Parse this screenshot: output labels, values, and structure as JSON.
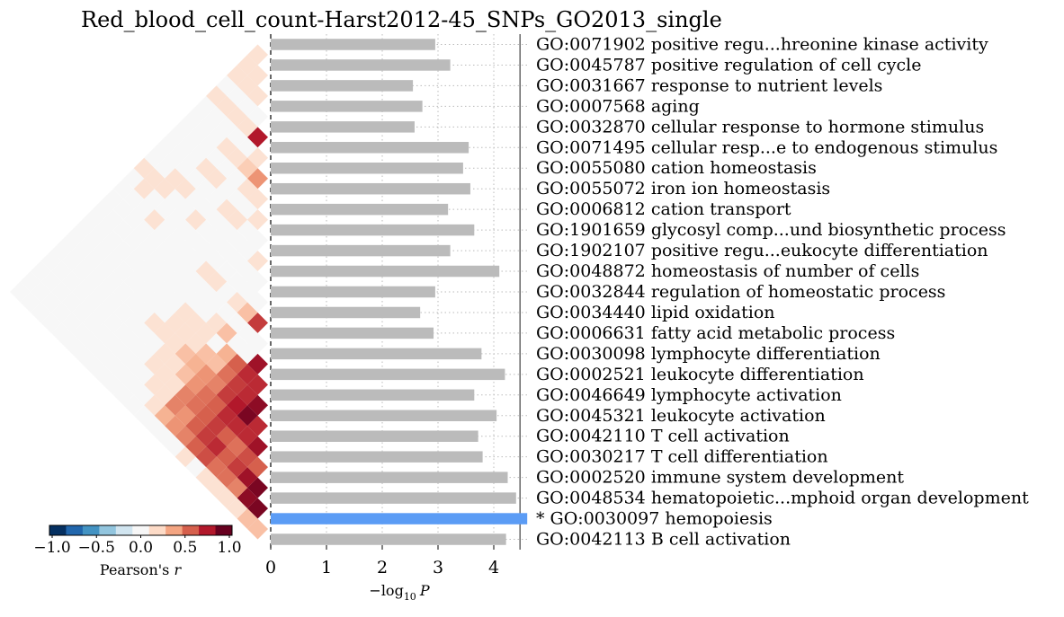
{
  "title": "Red_blood_cell_count-Harst2012-45_SNPs_GO2013_single",
  "chart_data": {
    "type": "bar",
    "orientation": "horizontal",
    "title": "Red_blood_cell_count-Harst2012-45_SNPs_GO2013_single",
    "xlabel": "−log₁₀ P",
    "xlabel_parts": {
      "base": "−log",
      "sub": "10",
      "var": "P"
    },
    "xlim": [
      0,
      4.6
    ],
    "xticks": [
      "0",
      "1",
      "2",
      "3",
      "4"
    ],
    "grid": true,
    "significance_line_x": 4.6,
    "bar_color": "#bbbbbb",
    "highlight_color": "#5b9cf5",
    "categories": [
      "GO:0071902 positive regu...hreonine kinase activity",
      "GO:0045787 positive regulation of cell cycle",
      "GO:0031667 response to nutrient levels",
      "GO:0007568 aging",
      "GO:0032870 cellular response to hormone stimulus",
      "GO:0071495 cellular resp...e to endogenous stimulus",
      "GO:0055080 cation homeostasis",
      "GO:0055072 iron ion homeostasis",
      "GO:0006812 cation transport",
      "GO:1901659 glycosyl comp...und biosynthetic process",
      "GO:1902107 positive regu...eukocyte differentiation",
      "GO:0048872 homeostasis of number of cells",
      "GO:0032844 regulation of homeostatic process",
      "GO:0034440 lipid oxidation",
      "GO:0006631 fatty acid metabolic process",
      "GO:0030098 lymphocyte differentiation",
      "GO:0002521 leukocyte differentiation",
      "GO:0046649 lymphocyte activation",
      "GO:0045321 leukocyte activation",
      "GO:0042110 T cell activation",
      "GO:0030217 T cell differentiation",
      "GO:0002520 immune system development",
      "GO:0048534 hematopoietic...mphoid organ development",
      "* GO:0030097 hemopoiesis",
      "GO:0042113 B cell activation"
    ],
    "values": [
      2.95,
      3.22,
      2.55,
      2.72,
      2.58,
      3.55,
      3.45,
      3.58,
      3.18,
      3.65,
      3.22,
      4.1,
      2.95,
      2.68,
      2.92,
      3.78,
      4.2,
      3.65,
      4.05,
      3.72,
      3.8,
      4.25,
      4.4,
      4.6,
      4.22
    ],
    "highlighted_index": 23,
    "correlation_heatmap": {
      "colorbar_label": "Pearson's r",
      "colorbar_label_parts": {
        "text": "Pearson's ",
        "var": "r"
      },
      "colorbar_ticks": [
        "−1.0",
        "−0.5",
        "0.0",
        "0.5",
        "1.0"
      ],
      "vmin": -1.0,
      "vmax": 1.0,
      "colorbar_colors": [
        "#053061",
        "#2166ac",
        "#4393c3",
        "#92c5de",
        "#d1e5f0",
        "#f7f7f7",
        "#fddbc7",
        "#f4a582",
        "#d6604d",
        "#b2182b",
        "#67001f"
      ],
      "cells": [
        [
          0,
          1,
          0.15
        ],
        [
          1,
          2,
          0.15
        ],
        [
          2,
          3,
          0.15
        ],
        [
          4,
          5,
          0.8
        ],
        [
          5,
          6,
          0.15
        ],
        [
          6,
          7,
          0.45
        ],
        [
          7,
          8,
          0.15
        ],
        [
          8,
          9,
          0.15
        ],
        [
          10,
          11,
          0.15
        ],
        [
          13,
          14,
          0.7
        ],
        [
          15,
          16,
          0.85
        ],
        [
          16,
          17,
          0.75
        ],
        [
          17,
          18,
          0.9
        ],
        [
          18,
          19,
          0.75
        ],
        [
          19,
          20,
          0.85
        ],
        [
          20,
          21,
          0.6
        ],
        [
          21,
          22,
          0.95
        ],
        [
          22,
          23,
          0.95
        ],
        [
          23,
          24,
          0.3
        ],
        [
          0,
          2,
          0.15
        ],
        [
          1,
          3,
          0.15
        ],
        [
          3,
          5,
          0.15
        ],
        [
          5,
          7,
          0.25
        ],
        [
          6,
          8,
          0.15
        ],
        [
          12,
          14,
          0.3
        ],
        [
          15,
          17,
          0.75
        ],
        [
          16,
          18,
          0.75
        ],
        [
          17,
          19,
          0.95
        ],
        [
          18,
          20,
          0.75
        ],
        [
          19,
          21,
          0.65
        ],
        [
          20,
          22,
          0.85
        ],
        [
          21,
          23,
          0.9
        ],
        [
          22,
          24,
          0.3
        ],
        [
          0,
          3,
          0.15
        ],
        [
          2,
          5,
          0.15
        ],
        [
          4,
          7,
          0.15
        ],
        [
          7,
          10,
          0.15
        ],
        [
          11,
          14,
          0.15
        ],
        [
          14,
          17,
          0.6
        ],
        [
          15,
          18,
          0.7
        ],
        [
          16,
          19,
          0.8
        ],
        [
          17,
          20,
          0.75
        ],
        [
          18,
          21,
          0.55
        ],
        [
          19,
          22,
          0.7
        ],
        [
          20,
          23,
          0.5
        ],
        [
          21,
          24,
          0.15
        ],
        [
          1,
          5,
          0.15
        ],
        [
          3,
          7,
          0.15
        ],
        [
          6,
          10,
          0.15
        ],
        [
          12,
          16,
          0.3
        ],
        [
          13,
          17,
          0.35
        ],
        [
          14,
          18,
          0.55
        ],
        [
          15,
          19,
          0.7
        ],
        [
          16,
          20,
          0.75
        ],
        [
          17,
          21,
          0.6
        ],
        [
          18,
          22,
          0.6
        ],
        [
          19,
          23,
          0.55
        ],
        [
          20,
          24,
          0.15
        ],
        [
          0,
          5,
          0.15
        ],
        [
          4,
          9,
          0.15
        ],
        [
          9,
          14,
          0.15
        ],
        [
          11,
          16,
          0.15
        ],
        [
          13,
          18,
          0.3
        ],
        [
          14,
          19,
          0.5
        ],
        [
          15,
          20,
          0.6
        ],
        [
          16,
          21,
          0.7
        ],
        [
          17,
          22,
          0.75
        ],
        [
          18,
          23,
          0.55
        ],
        [
          19,
          24,
          0.15
        ],
        [
          3,
          9,
          0.15
        ],
        [
          8,
          14,
          0.15
        ],
        [
          11,
          17,
          0.15
        ],
        [
          12,
          18,
          0.3
        ],
        [
          13,
          19,
          0.45
        ],
        [
          14,
          20,
          0.55
        ],
        [
          15,
          21,
          0.6
        ],
        [
          16,
          22,
          0.7
        ],
        [
          17,
          23,
          0.65
        ],
        [
          18,
          24,
          0.15
        ],
        [
          5,
          12,
          0.15
        ],
        [
          10,
          17,
          0.15
        ],
        [
          11,
          18,
          0.15
        ],
        [
          12,
          19,
          0.35
        ],
        [
          13,
          20,
          0.45
        ],
        [
          14,
          21,
          0.55
        ],
        [
          15,
          22,
          0.6
        ],
        [
          16,
          23,
          0.6
        ],
        [
          3,
          11,
          0.15
        ],
        [
          9,
          17,
          0.15
        ],
        [
          10,
          18,
          0.15
        ],
        [
          11,
          19,
          0.3
        ],
        [
          12,
          20,
          0.3
        ],
        [
          13,
          21,
          0.5
        ],
        [
          14,
          22,
          0.45
        ],
        [
          15,
          23,
          0.5
        ],
        [
          16,
          24,
          0.15
        ],
        [
          2,
          11,
          0.15
        ],
        [
          9,
          18,
          0.15
        ],
        [
          10,
          19,
          0.15
        ],
        [
          11,
          20,
          0.15
        ],
        [
          12,
          21,
          0.15
        ],
        [
          13,
          22,
          0.5
        ],
        [
          14,
          23,
          0.45
        ],
        [
          2,
          12,
          0.15
        ],
        [
          9,
          19,
          0.15
        ],
        [
          10,
          20,
          0.15
        ],
        [
          11,
          21,
          0.15
        ],
        [
          12,
          22,
          0.15
        ],
        [
          13,
          23,
          0.35
        ],
        [
          1,
          12,
          0.15
        ],
        [
          3,
          14,
          0.15
        ],
        [
          8,
          19,
          0.15
        ],
        [
          10,
          21,
          0.15
        ],
        [
          11,
          22,
          0.15
        ],
        [
          12,
          23,
          0.15
        ],
        [
          0,
          12,
          0.15
        ],
        [
          1,
          13,
          0.15
        ]
      ]
    }
  }
}
